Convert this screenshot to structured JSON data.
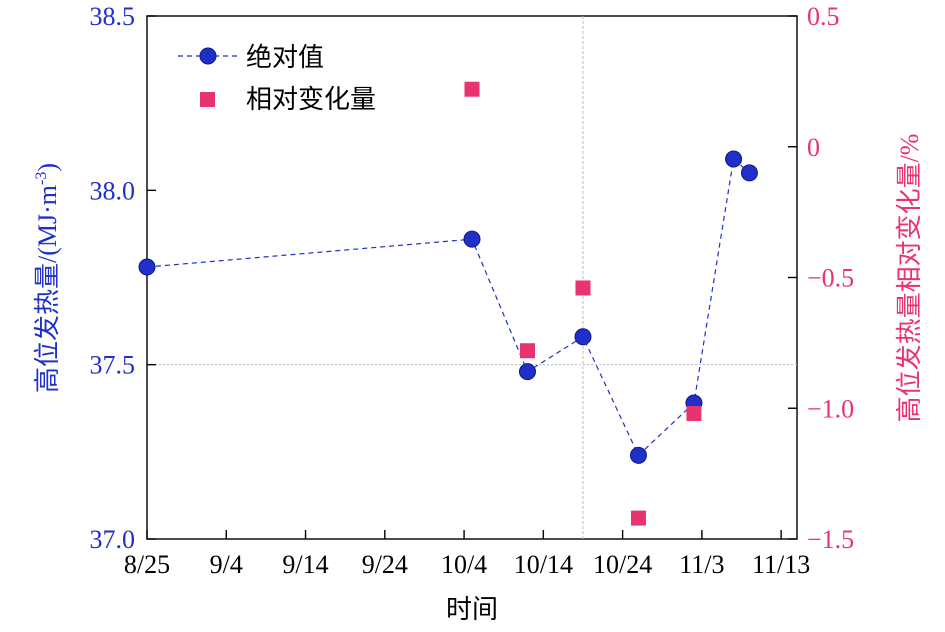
{
  "chart_data": {
    "type": "scatter",
    "xlabel": "时间",
    "ylabel_left": "高位发热量/(MJ·m",
    "ylabel_left_sup": "-3",
    "ylabel_left_close": ")",
    "ylabel_right": "高位发热量相对变化量/%",
    "x_ticks": [
      "8/25",
      "9/4",
      "9/14",
      "9/24",
      "10/4",
      "10/14",
      "10/24",
      "11/3",
      "11/13"
    ],
    "x_tick_days": [
      0,
      10,
      20,
      30,
      40,
      50,
      60,
      70,
      80
    ],
    "xlim_days": [
      0,
      82
    ],
    "left_axis": {
      "range": [
        37.0,
        38.5
      ],
      "ticks": [
        "37.0",
        "37.5",
        "38.0",
        "38.5"
      ],
      "tick_values": [
        37.0,
        37.5,
        38.0,
        38.5
      ]
    },
    "right_axis": {
      "range": [
        -1.5,
        0.5
      ],
      "ticks": [
        "−1.5",
        "−1.0",
        "−0.5",
        "0",
        "0.5"
      ],
      "tick_values": [
        -1.5,
        -1.0,
        -0.5,
        0,
        0.5
      ]
    },
    "reference_lines": {
      "horizontal_left_value": 37.5,
      "vertical_day": 55
    },
    "series": [
      {
        "name": "绝对值",
        "axis": "left",
        "marker": "circle",
        "line": "dashed",
        "color": "#1f2fc8",
        "x_days": [
          0,
          41,
          48,
          55,
          62,
          69,
          74,
          76
        ],
        "values": [
          37.78,
          37.86,
          37.48,
          37.58,
          37.24,
          37.39,
          38.09,
          38.05
        ]
      },
      {
        "name": "相对变化量",
        "axis": "right",
        "marker": "square",
        "line": "none",
        "color": "#e8336e",
        "x_days": [
          41,
          48,
          55,
          62,
          69
        ],
        "values": [
          0.22,
          -0.78,
          -0.54,
          -1.42,
          -1.02
        ]
      }
    ]
  }
}
